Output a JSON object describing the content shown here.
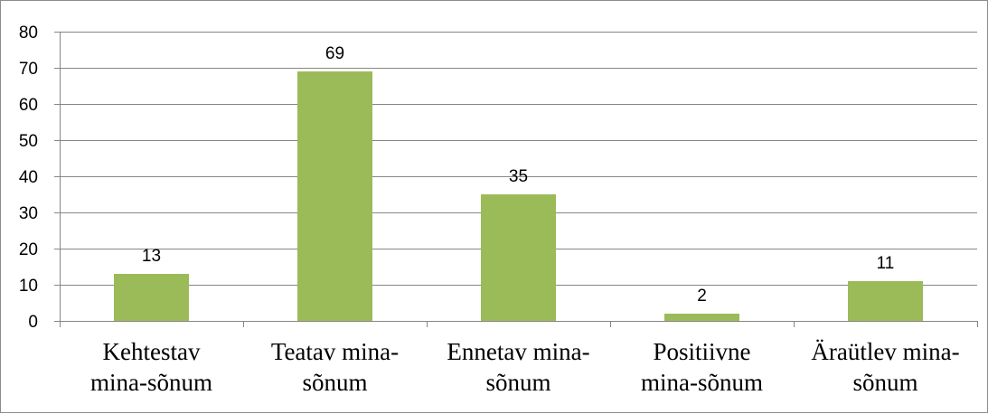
{
  "chart_data": {
    "type": "bar",
    "title": "",
    "xlabel": "",
    "ylabel": "",
    "categories": [
      [
        "Kehtestav",
        "mina-sõnum"
      ],
      [
        "Teatav mina-",
        "sõnum"
      ],
      [
        "Ennetav mina-",
        "sõnum"
      ],
      [
        "Positiivne",
        "mina-sõnum"
      ],
      [
        "Äraütlev mina-",
        "sõnum"
      ]
    ],
    "values": [
      13,
      69,
      35,
      2,
      11
    ],
    "data_labels": [
      "13",
      "69",
      "35",
      "2",
      "11"
    ],
    "ylim": [
      0,
      80
    ],
    "yticks": [
      0,
      10,
      20,
      30,
      40,
      50,
      60,
      70,
      80
    ],
    "grid": true,
    "legend": "none",
    "colors": {
      "bar": "#9bbb59",
      "grid": "#868686",
      "axis": "#868686"
    }
  }
}
